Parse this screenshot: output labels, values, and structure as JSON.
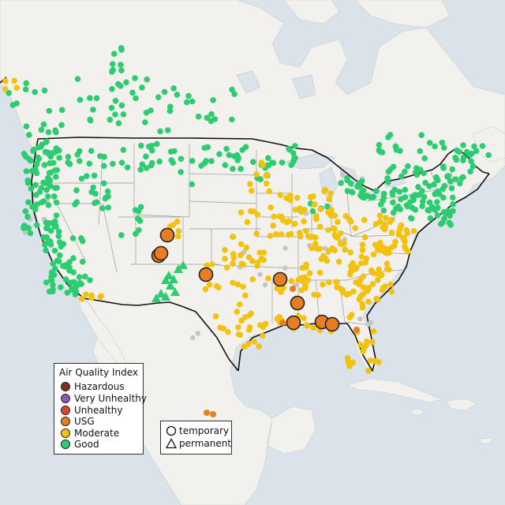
{
  "legend": {
    "title": "Air Quality Index",
    "items": [
      {
        "label": "Hazardous",
        "color": "#7e2f23"
      },
      {
        "label": "Very Unhealthy",
        "color": "#8e5aa8"
      },
      {
        "label": "Unhealthy",
        "color": "#e8412c"
      },
      {
        "label": "USG",
        "color": "#e87d24"
      },
      {
        "label": "Moderate",
        "color": "#f2c20e"
      },
      {
        "label": "Good",
        "color": "#2ecc71"
      }
    ]
  },
  "type_legend": {
    "temporary": "temporary",
    "permanent": "permanent"
  },
  "colors": {
    "water": "#dbe3ea",
    "land": "#f2f1ee",
    "border": "#111111",
    "state_line": "#9a9a9a",
    "nodata": "#c4c4c4"
  },
  "map_data": {
    "view": "North America, contiguous United States, fire-related air quality monitors",
    "category_order": [
      "Good",
      "Moderate",
      "USG",
      "Unhealthy",
      "Very Unhealthy",
      "Hazardous"
    ],
    "monitors_by_category": [
      {
        "category": "Good",
        "type": "temporary",
        "approx_count": 370
      },
      {
        "category": "Good",
        "type": "permanent",
        "approx_count": 12
      },
      {
        "category": "Moderate",
        "type": "temporary",
        "approx_count": 330
      },
      {
        "category": "USG",
        "type": "temporary",
        "approx_count": 10,
        "large_markers": 10
      },
      {
        "category": "USG",
        "type": "temporary",
        "approx_count": 5,
        "small_markers": 5
      }
    ],
    "symbols": [
      "circle",
      "triangle"
    ]
  }
}
